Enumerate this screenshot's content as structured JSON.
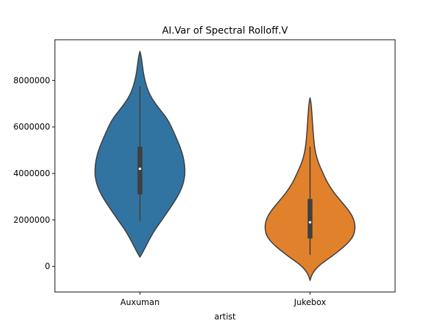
{
  "chart_data": {
    "type": "violin",
    "title": "AI.Var of Spectral Rolloff.V",
    "xlabel": "artist",
    "ylabel": "",
    "ylim": [
      -1100000,
      9750000
    ],
    "yticks": [
      0,
      2000000,
      4000000,
      6000000,
      8000000
    ],
    "ytick_labels": [
      "0",
      "2000000",
      "4000000",
      "6000000",
      "8000000"
    ],
    "categories": [
      "Auxuman",
      "Jukebox"
    ],
    "grid": false,
    "series": [
      {
        "category": "Auxuman",
        "color": "#3274a1",
        "box": {
          "whisker_low": 1950000,
          "q1": 3100000,
          "median": 4200000,
          "q3": 5150000,
          "whisker_high": 7750000
        },
        "kde_range": [
          400000,
          9250000
        ],
        "profile": [
          [
            400000,
            0.0
          ],
          [
            600000,
            0.06
          ],
          [
            900000,
            0.14
          ],
          [
            1200000,
            0.22
          ],
          [
            1600000,
            0.34
          ],
          [
            2000000,
            0.49
          ],
          [
            2400000,
            0.63
          ],
          [
            2800000,
            0.77
          ],
          [
            3200000,
            0.89
          ],
          [
            3600000,
            0.97
          ],
          [
            4000000,
            1.0
          ],
          [
            4400000,
            0.99
          ],
          [
            4800000,
            0.95
          ],
          [
            5200000,
            0.88
          ],
          [
            5600000,
            0.79
          ],
          [
            6000000,
            0.7
          ],
          [
            6400000,
            0.59
          ],
          [
            6800000,
            0.42
          ],
          [
            7200000,
            0.27
          ],
          [
            7600000,
            0.17
          ],
          [
            8000000,
            0.11
          ],
          [
            8400000,
            0.07
          ],
          [
            8800000,
            0.045
          ],
          [
            9100000,
            0.02
          ],
          [
            9250000,
            0.0
          ]
        ]
      },
      {
        "category": "Jukebox",
        "color": "#e1812c",
        "box": {
          "whisker_low": 500000,
          "q1": 1200000,
          "median": 1900000,
          "q3": 2900000,
          "whisker_high": 5150000
        },
        "kde_range": [
          -600000,
          7250000
        ],
        "profile": [
          [
            -600000,
            0.0
          ],
          [
            -400000,
            0.03
          ],
          [
            -200000,
            0.09
          ],
          [
            0,
            0.18
          ],
          [
            200000,
            0.31
          ],
          [
            400000,
            0.46
          ],
          [
            700000,
            0.66
          ],
          [
            1000000,
            0.84
          ],
          [
            1300000,
            0.96
          ],
          [
            1600000,
            1.0
          ],
          [
            1900000,
            0.99
          ],
          [
            2200000,
            0.93
          ],
          [
            2500000,
            0.82
          ],
          [
            2800000,
            0.69
          ],
          [
            3100000,
            0.56
          ],
          [
            3400000,
            0.45
          ],
          [
            3700000,
            0.36
          ],
          [
            4000000,
            0.29
          ],
          [
            4300000,
            0.22
          ],
          [
            4600000,
            0.16
          ],
          [
            5000000,
            0.11
          ],
          [
            5500000,
            0.08
          ],
          [
            6000000,
            0.06
          ],
          [
            6500000,
            0.045
          ],
          [
            7000000,
            0.025
          ],
          [
            7250000,
            0.0
          ]
        ]
      }
    ]
  }
}
